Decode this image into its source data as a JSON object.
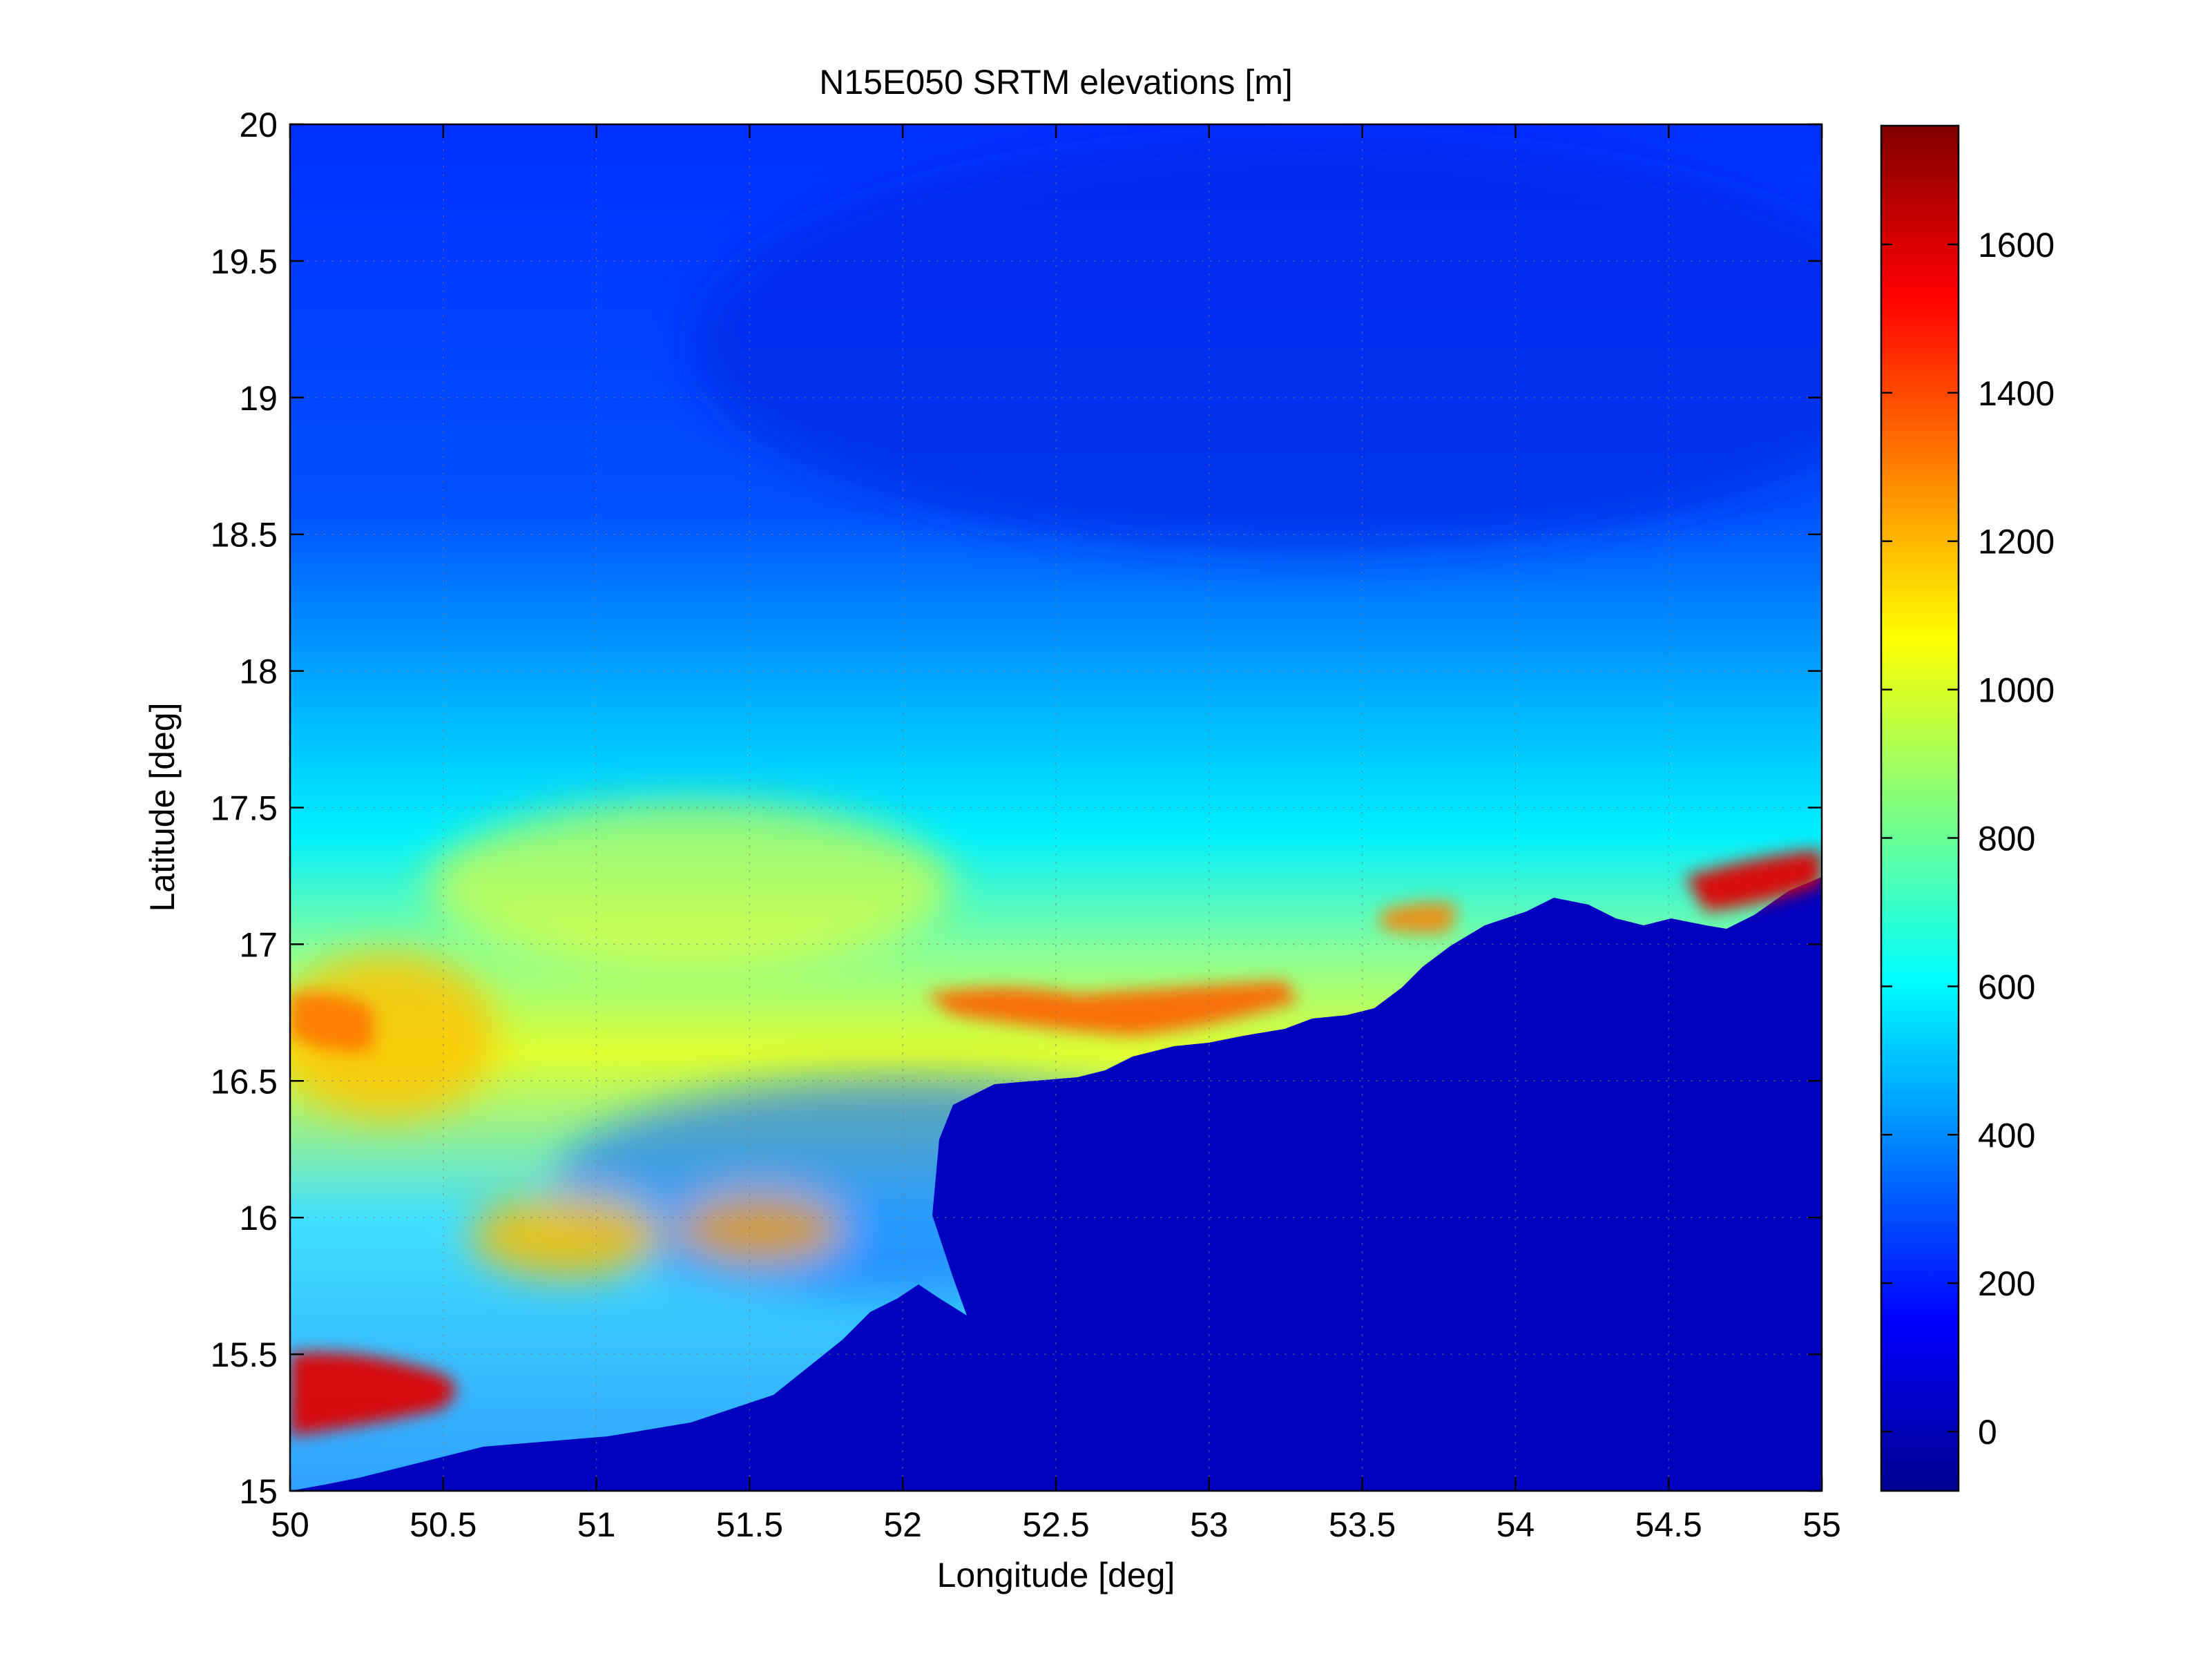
{
  "figure": {
    "title": "N15E050 SRTM elevations [m]",
    "xlabel": "Longitude [deg]",
    "ylabel": "Latitude [deg]"
  },
  "map": {
    "type": "heatmap",
    "colormap": "jet",
    "xlim": [
      50,
      55
    ],
    "ylim": [
      15,
      20
    ],
    "x_ticks": [
      50,
      50.5,
      51,
      51.5,
      52,
      52.5,
      53,
      53.5,
      54,
      54.5,
      55
    ],
    "y_ticks": [
      15,
      15.5,
      16,
      16.5,
      17,
      17.5,
      18,
      18.5,
      19,
      19.5,
      20
    ],
    "x_tick_labels": [
      "50",
      "50.5",
      "51",
      "51.5",
      "52",
      "52.5",
      "53",
      "53.5",
      "54",
      "54.5",
      "55"
    ],
    "y_tick_labels": [
      "15",
      "15.5",
      "16",
      "16.5",
      "17",
      "17.5",
      "18",
      "18.5",
      "19",
      "19.5",
      "20"
    ],
    "grid": true,
    "colors": {
      "sea": "#0000bf",
      "lowland": "#0030ff",
      "plateau": "#00e8ff",
      "highland": "#ffd000",
      "peaks": "#e00000"
    }
  },
  "colorbar": {
    "clim": [
      -80,
      1760
    ],
    "ticks": [
      0,
      200,
      400,
      600,
      800,
      1000,
      1200,
      1400,
      1600
    ],
    "tick_labels": [
      "0",
      "200",
      "400",
      "600",
      "800",
      "1000",
      "1200",
      "1400",
      "1600"
    ],
    "location": "right"
  }
}
